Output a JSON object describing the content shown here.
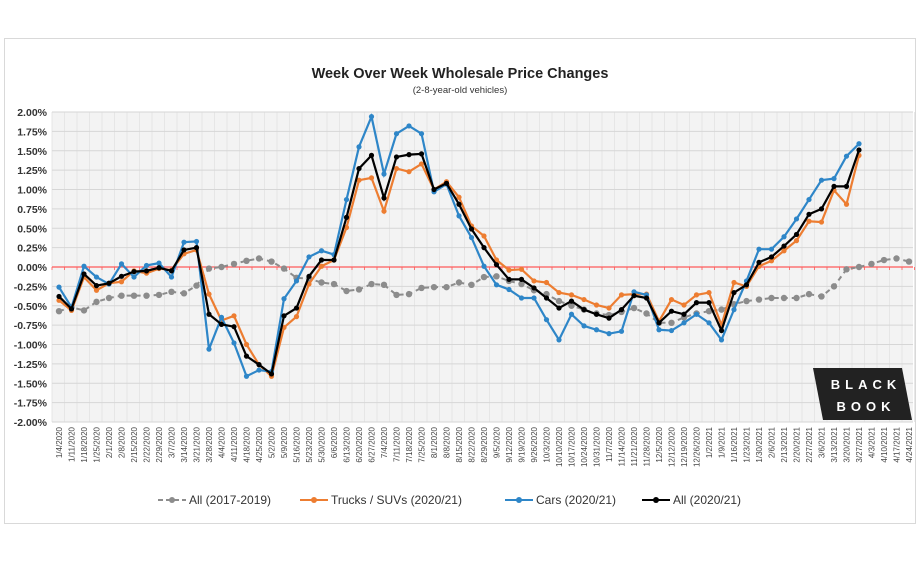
{
  "chart_data": {
    "type": "line",
    "title": "Week Over Week Wholesale Price Changes",
    "subtitle": "(2-8-year-old vehicles)",
    "xlabel": "",
    "ylabel": "",
    "ylim": [
      -2.0,
      2.0
    ],
    "y_unit": "%",
    "yticks": [
      "2.00%",
      "1.75%",
      "1.50%",
      "1.25%",
      "1.00%",
      "0.75%",
      "0.50%",
      "0.25%",
      "0.00%",
      "-0.25%",
      "-0.50%",
      "-0.75%",
      "-1.00%",
      "-1.25%",
      "-1.50%",
      "-1.75%",
      "-2.00%"
    ],
    "grid": true,
    "legend_position": "bottom",
    "reference_line": {
      "value": 0,
      "color": "#ff5a5a"
    },
    "categories": [
      "1/4/2020",
      "1/11/2020",
      "1/18/2020",
      "1/25/2020",
      "2/1/2020",
      "2/8/2020",
      "2/15/2020",
      "2/22/2020",
      "2/29/2020",
      "3/7/2020",
      "3/14/2020",
      "3/21/2020",
      "3/28/2020",
      "4/4/2020",
      "4/11/2020",
      "4/18/2020",
      "4/25/2020",
      "5/2/2020",
      "5/9/2020",
      "5/16/2020",
      "5/23/2020",
      "5/30/2020",
      "6/6/2020",
      "6/13/2020",
      "6/20/2020",
      "6/27/2020",
      "7/4/2020",
      "7/11/2020",
      "7/18/2020",
      "7/25/2020",
      "8/1/2020",
      "8/8/2020",
      "8/15/2020",
      "8/22/2020",
      "8/29/2020",
      "9/5/2020",
      "9/12/2020",
      "9/19/2020",
      "9/26/2020",
      "10/3/2020",
      "10/10/2020",
      "10/17/2020",
      "10/24/2020",
      "10/31/2020",
      "11/7/2020",
      "11/14/2020",
      "11/21/2020",
      "11/28/2020",
      "12/5/2020",
      "12/12/2020",
      "12/19/2020",
      "12/26/2020",
      "1/2/2021",
      "1/9/2021",
      "1/16/2021",
      "1/23/2021",
      "1/30/2021",
      "2/6/2021",
      "2/13/2021",
      "2/20/2021",
      "2/27/2021",
      "3/6/2021",
      "3/13/2021",
      "3/20/2021",
      "3/27/2021",
      "4/3/2021",
      "4/10/2021",
      "4/17/2021",
      "4/24/2021"
    ],
    "series": [
      {
        "name": "All (2017-2019)",
        "color": "#8c8c8c",
        "dashed": true,
        "values": [
          -0.57,
          -0.52,
          -0.56,
          -0.45,
          -0.4,
          -0.37,
          -0.37,
          -0.37,
          -0.36,
          -0.32,
          -0.34,
          -0.24,
          -0.02,
          0.0,
          0.04,
          0.08,
          0.11,
          0.07,
          -0.02,
          -0.14,
          -0.15,
          -0.2,
          -0.22,
          -0.31,
          -0.29,
          -0.22,
          -0.23,
          -0.36,
          -0.35,
          -0.27,
          -0.26,
          -0.26,
          -0.2,
          -0.23,
          -0.13,
          -0.12,
          -0.18,
          -0.22,
          -0.3,
          -0.35,
          -0.44,
          -0.5,
          -0.55,
          -0.6,
          -0.62,
          -0.58,
          -0.53,
          -0.6,
          -0.72,
          -0.72,
          -0.65,
          -0.6,
          -0.57,
          -0.55,
          -0.48,
          -0.44,
          -0.42,
          -0.4,
          -0.4,
          -0.4,
          -0.35,
          -0.38,
          -0.25,
          -0.03,
          0.0,
          0.04,
          0.09,
          0.11,
          0.07
        ]
      },
      {
        "name": "Trucks / SUVs (2020/21)",
        "color": "#ed7d31",
        "dashed": false,
        "values": [
          -0.43,
          -0.56,
          -0.13,
          -0.3,
          -0.21,
          -0.19,
          -0.05,
          -0.08,
          -0.02,
          -0.04,
          0.17,
          0.22,
          -0.35,
          -0.69,
          -0.63,
          -1.0,
          -1.26,
          -1.41,
          -0.78,
          -0.64,
          -0.22,
          0.01,
          0.09,
          0.51,
          1.12,
          1.15,
          0.72,
          1.27,
          1.23,
          1.33,
          1.0,
          1.1,
          0.9,
          0.53,
          0.4,
          0.09,
          -0.04,
          -0.03,
          -0.18,
          -0.2,
          -0.33,
          -0.36,
          -0.42,
          -0.49,
          -0.53,
          -0.36,
          -0.35,
          -0.35,
          -0.7,
          -0.42,
          -0.49,
          -0.36,
          -0.33,
          -0.75,
          -0.2,
          -0.25,
          0.01,
          0.08,
          0.21,
          0.34,
          0.59,
          0.58,
          0.99,
          0.81,
          1.44,
          null,
          null,
          null,
          null
        ]
      },
      {
        "name": "Cars (2020/21)",
        "color": "#2e86c8",
        "dashed": false,
        "values": [
          -0.26,
          -0.52,
          0.01,
          -0.13,
          -0.22,
          0.04,
          -0.13,
          0.02,
          0.05,
          -0.13,
          0.32,
          0.33,
          -1.06,
          -0.65,
          -0.98,
          -1.41,
          -1.33,
          -1.35,
          -0.41,
          -0.18,
          0.13,
          0.21,
          0.16,
          0.87,
          1.55,
          1.94,
          1.2,
          1.72,
          1.82,
          1.72,
          0.97,
          1.07,
          0.66,
          0.38,
          0.01,
          -0.23,
          -0.29,
          -0.4,
          -0.4,
          -0.68,
          -0.94,
          -0.61,
          -0.76,
          -0.81,
          -0.86,
          -0.83,
          -0.32,
          -0.36,
          -0.81,
          -0.82,
          -0.72,
          -0.61,
          -0.72,
          -0.94,
          -0.55,
          -0.18,
          0.23,
          0.23,
          0.39,
          0.62,
          0.87,
          1.12,
          1.14,
          1.43,
          1.59,
          null,
          null,
          null,
          null
        ]
      },
      {
        "name": "All (2020/21)",
        "color": "#000000",
        "dashed": false,
        "values": [
          -0.38,
          -0.54,
          -0.09,
          -0.24,
          -0.21,
          -0.12,
          -0.06,
          -0.05,
          -0.01,
          -0.05,
          0.22,
          0.25,
          -0.61,
          -0.74,
          -0.77,
          -1.15,
          -1.26,
          -1.38,
          -0.63,
          -0.53,
          -0.12,
          0.09,
          0.09,
          0.64,
          1.27,
          1.44,
          0.89,
          1.42,
          1.45,
          1.46,
          1.0,
          1.08,
          0.81,
          0.49,
          0.25,
          0.03,
          -0.16,
          -0.16,
          -0.27,
          -0.4,
          -0.53,
          -0.44,
          -0.55,
          -0.61,
          -0.66,
          -0.55,
          -0.37,
          -0.4,
          -0.72,
          -0.57,
          -0.61,
          -0.46,
          -0.46,
          -0.82,
          -0.33,
          -0.23,
          0.06,
          0.13,
          0.27,
          0.42,
          0.68,
          0.75,
          1.04,
          1.04,
          1.51,
          null,
          null,
          null,
          null
        ]
      }
    ]
  },
  "logo": {
    "line1": "BLACK",
    "line2": "BOOK"
  }
}
